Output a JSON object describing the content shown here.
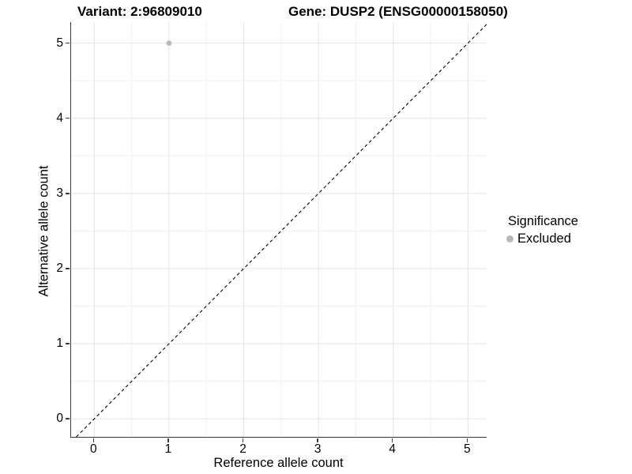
{
  "header": {
    "title_left": "Variant: 2:96809010",
    "title_right": "Gene: DUSP2 (ENSG00000158050)"
  },
  "chart_data": {
    "type": "scatter",
    "title_left": "Variant: 2:96809010",
    "title_right": "Gene: DUSP2 (ENSG00000158050)",
    "xlabel": "Reference allele count",
    "ylabel": "Alternative allele count",
    "xticks": [
      0,
      1,
      2,
      3,
      4,
      5
    ],
    "yticks": [
      0,
      1,
      2,
      3,
      4,
      5
    ],
    "xlim": [
      -0.31,
      5.25
    ],
    "ylim": [
      -0.24,
      5.28
    ],
    "minor_grid_step": 0.5,
    "grid": "major+minor",
    "points": [
      {
        "x": 1,
        "y": 5,
        "significance": "Excluded"
      }
    ],
    "reference_line": {
      "kind": "identity y=x",
      "style": "dashed"
    },
    "legend": {
      "title": "Significance",
      "position": "right",
      "entries": [
        {
          "label": "Excluded",
          "marker": "circle",
          "color": "#b8b8b8"
        }
      ]
    },
    "colors": {
      "point": "#b8b8b8",
      "grid_major": "#e4e4e4",
      "grid_minor": "#f0f0f0",
      "axis": "#3a3a3a",
      "reference_line": "#000000",
      "text": "#000000",
      "background": "#ffffff"
    }
  }
}
